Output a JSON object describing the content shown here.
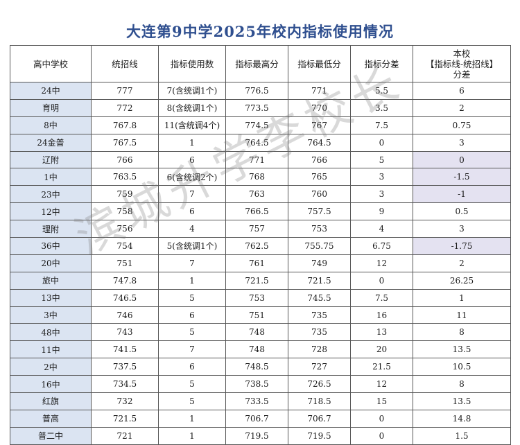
{
  "title": "大连第9中学2025年校内指标使用情况",
  "watermark": "滨城升学李校长",
  "headers": [
    "高中学校",
    "统招线",
    "指标使用数",
    "指标最高分",
    "指标最低分",
    "指标分差",
    "本校\n【指标线-统招线】\n分差"
  ],
  "rows": [
    {
      "school": "24中",
      "line": "777",
      "used": "7(含统调1个)",
      "max": "776.5",
      "min": "771",
      "gap": "5.5",
      "diff": "6"
    },
    {
      "school": "育明",
      "line": "772",
      "used": "8(含统调1个)",
      "max": "773.5",
      "min": "770",
      "gap": "3.5",
      "diff": "2"
    },
    {
      "school": "8中",
      "line": "767.8",
      "used": "11(含统调4个)",
      "max": "774.5",
      "min": "767",
      "gap": "7.5",
      "diff": "0.75"
    },
    {
      "school": "24金普",
      "line": "767.5",
      "used": "1",
      "max": "764.5",
      "min": "764.5",
      "gap": "0",
      "diff": "3"
    },
    {
      "school": "辽附",
      "line": "766",
      "used": "6",
      "max": "771",
      "min": "766",
      "gap": "5",
      "diff": "0"
    },
    {
      "school": "1中",
      "line": "763.5",
      "used": "6(含统调2个)",
      "max": "768",
      "min": "765",
      "gap": "3",
      "diff": "-1.5"
    },
    {
      "school": "23中",
      "line": "759",
      "used": "7",
      "max": "763",
      "min": "760",
      "gap": "3",
      "diff": "-1"
    },
    {
      "school": "12中",
      "line": "758",
      "used": "6",
      "max": "766.5",
      "min": "757.5",
      "gap": "9",
      "diff": "0.5"
    },
    {
      "school": "理附",
      "line": "756",
      "used": "4",
      "max": "757",
      "min": "753",
      "gap": "4",
      "diff": "3"
    },
    {
      "school": "36中",
      "line": "754",
      "used": "5(含统调1个)",
      "max": "762.5",
      "min": "755.75",
      "gap": "6.75",
      "diff": "-1.75"
    },
    {
      "school": "20中",
      "line": "751",
      "used": "7",
      "max": "761",
      "min": "749",
      "gap": "12",
      "diff": "2"
    },
    {
      "school": "旅中",
      "line": "747.8",
      "used": "1",
      "max": "721.5",
      "min": "721.5",
      "gap": "0",
      "diff": "26.25"
    },
    {
      "school": "13中",
      "line": "746.5",
      "used": "5",
      "max": "753",
      "min": "745.5",
      "gap": "7.5",
      "diff": "1"
    },
    {
      "school": "3中",
      "line": "746",
      "used": "6",
      "max": "751",
      "min": "735",
      "gap": "16",
      "diff": "11"
    },
    {
      "school": "48中",
      "line": "743",
      "used": "5",
      "max": "748",
      "min": "735",
      "gap": "13",
      "diff": "8"
    },
    {
      "school": "11中",
      "line": "741.5",
      "used": "7",
      "max": "748",
      "min": "728",
      "gap": "20",
      "diff": "13.5"
    },
    {
      "school": "2中",
      "line": "737.5",
      "used": "6",
      "max": "748.5",
      "min": "727",
      "gap": "21.5",
      "diff": "10.5"
    },
    {
      "school": "16中",
      "line": "734.5",
      "used": "5",
      "max": "738.5",
      "min": "726.5",
      "gap": "12",
      "diff": "8"
    },
    {
      "school": "红旗",
      "line": "732",
      "used": "5",
      "max": "733.5",
      "min": "718.5",
      "gap": "15",
      "diff": "13.5"
    },
    {
      "school": "普高",
      "line": "721.5",
      "used": "1",
      "max": "706.7",
      "min": "706.7",
      "gap": "0",
      "diff": "14.8"
    },
    {
      "school": "普二中",
      "line": "721",
      "used": "1",
      "max": "719.5",
      "min": "719.5",
      "gap": "0",
      "diff": "1.5"
    }
  ],
  "colors": {
    "title": "#2f4f8f",
    "school_highlight": "#dbe4f2",
    "diff_highlight": "#e4e2f1"
  }
}
